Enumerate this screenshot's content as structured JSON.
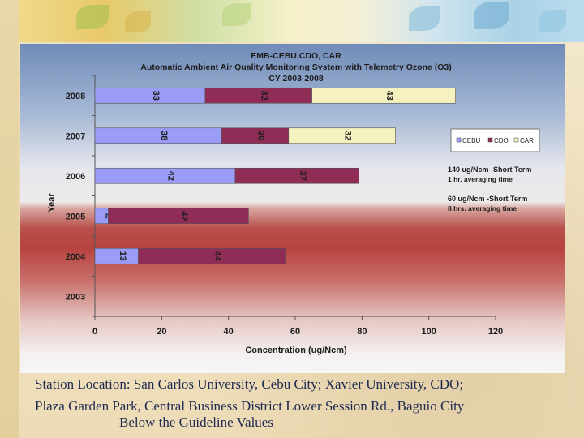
{
  "chart_data": {
    "type": "bar",
    "orientation": "horizontal",
    "stacked": true,
    "title_lines": [
      "EMB-CEBU,CDO, CAR",
      "Automatic Ambient Air Quality Monitoring System with Telemetry Ozone (O3)",
      "CY 2003-2008"
    ],
    "categories": [
      "2003",
      "2004",
      "2005",
      "2006",
      "2007",
      "2008"
    ],
    "series": [
      {
        "name": "CEBU",
        "color": "#9a9cf5",
        "values": [
          null,
          13,
          4,
          42,
          38,
          33
        ]
      },
      {
        "name": "CDO",
        "color": "#8f2d57",
        "values": [
          null,
          44,
          42,
          37,
          20,
          32
        ]
      },
      {
        "name": "CAR",
        "color": "#f5f2bf",
        "values": [
          null,
          null,
          null,
          null,
          32,
          43
        ]
      }
    ],
    "xlabel": "Concentration (ug/Ncm)",
    "ylabel": "Year",
    "xlim": [
      0,
      120
    ],
    "xticks": [
      "0",
      "20",
      "40",
      "60",
      "80",
      "100",
      "120"
    ],
    "legend": [
      "CEBU",
      "CDO",
      "CAR"
    ],
    "annotations": [
      {
        "line1": "140 ug/Ncm -Short Term",
        "line2": "1 hr. averaging time"
      },
      {
        "line1": "60 ug/Ncm -Short Term",
        "line2": "8 hrs. averaging time"
      }
    ]
  },
  "caption": {
    "line1": "Station Location: San Carlos University, Cebu City; Xavier University, CDO;",
    "line2": "Plaza Garden Park, Central Business District Lower Session Rd., Baguio City",
    "line3": "Below the Guideline Values"
  }
}
